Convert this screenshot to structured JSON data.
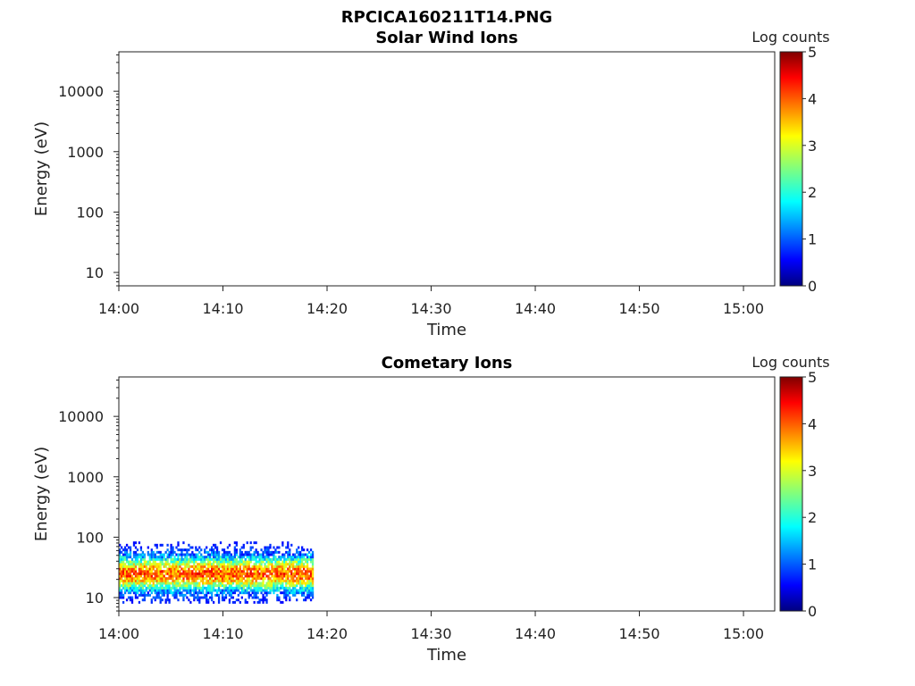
{
  "figure_title": "RPCICA160211T14.PNG",
  "chart_data": [
    {
      "type": "heatmap",
      "title": "Solar Wind Ions",
      "xlabel": "Time",
      "ylabel": "Energy (eV)",
      "y_scale": "log",
      "x_ticks": [
        "14:00",
        "14:10",
        "14:20",
        "14:30",
        "14:40",
        "14:50",
        "15:00"
      ],
      "y_ticks": [
        "10",
        "100",
        "1000",
        "10000"
      ],
      "xlim": [
        "14:00",
        "15:03"
      ],
      "ylim": [
        6,
        45000
      ],
      "colorbar": {
        "label": "Log counts",
        "min": 0,
        "max": 5,
        "ticks": [
          "0",
          "1",
          "2",
          "3",
          "4",
          "5"
        ],
        "colormap": "jet"
      },
      "data_coverage": null,
      "peak_energy_eV": null,
      "notes": "empty - no data"
    },
    {
      "type": "heatmap",
      "title": "Cometary Ions",
      "xlabel": "Time",
      "ylabel": "Energy (eV)",
      "y_scale": "log",
      "x_ticks": [
        "14:00",
        "14:10",
        "14:20",
        "14:30",
        "14:40",
        "14:50",
        "15:00"
      ],
      "y_ticks": [
        "10",
        "100",
        "1000",
        "10000"
      ],
      "xlim": [
        "14:00",
        "15:03"
      ],
      "ylim": [
        6,
        45000
      ],
      "colorbar": {
        "label": "Log counts",
        "min": 0,
        "max": 5,
        "ticks": [
          "0",
          "1",
          "2",
          "3",
          "4",
          "5"
        ],
        "colormap": "jet"
      },
      "data_coverage": {
        "time_start": "14:00",
        "time_end": "14:18.7",
        "energy_min_eV": 8,
        "energy_max_eV": 85
      },
      "peak_energy_eV": 25,
      "peak_log_counts": 3.9
    }
  ]
}
